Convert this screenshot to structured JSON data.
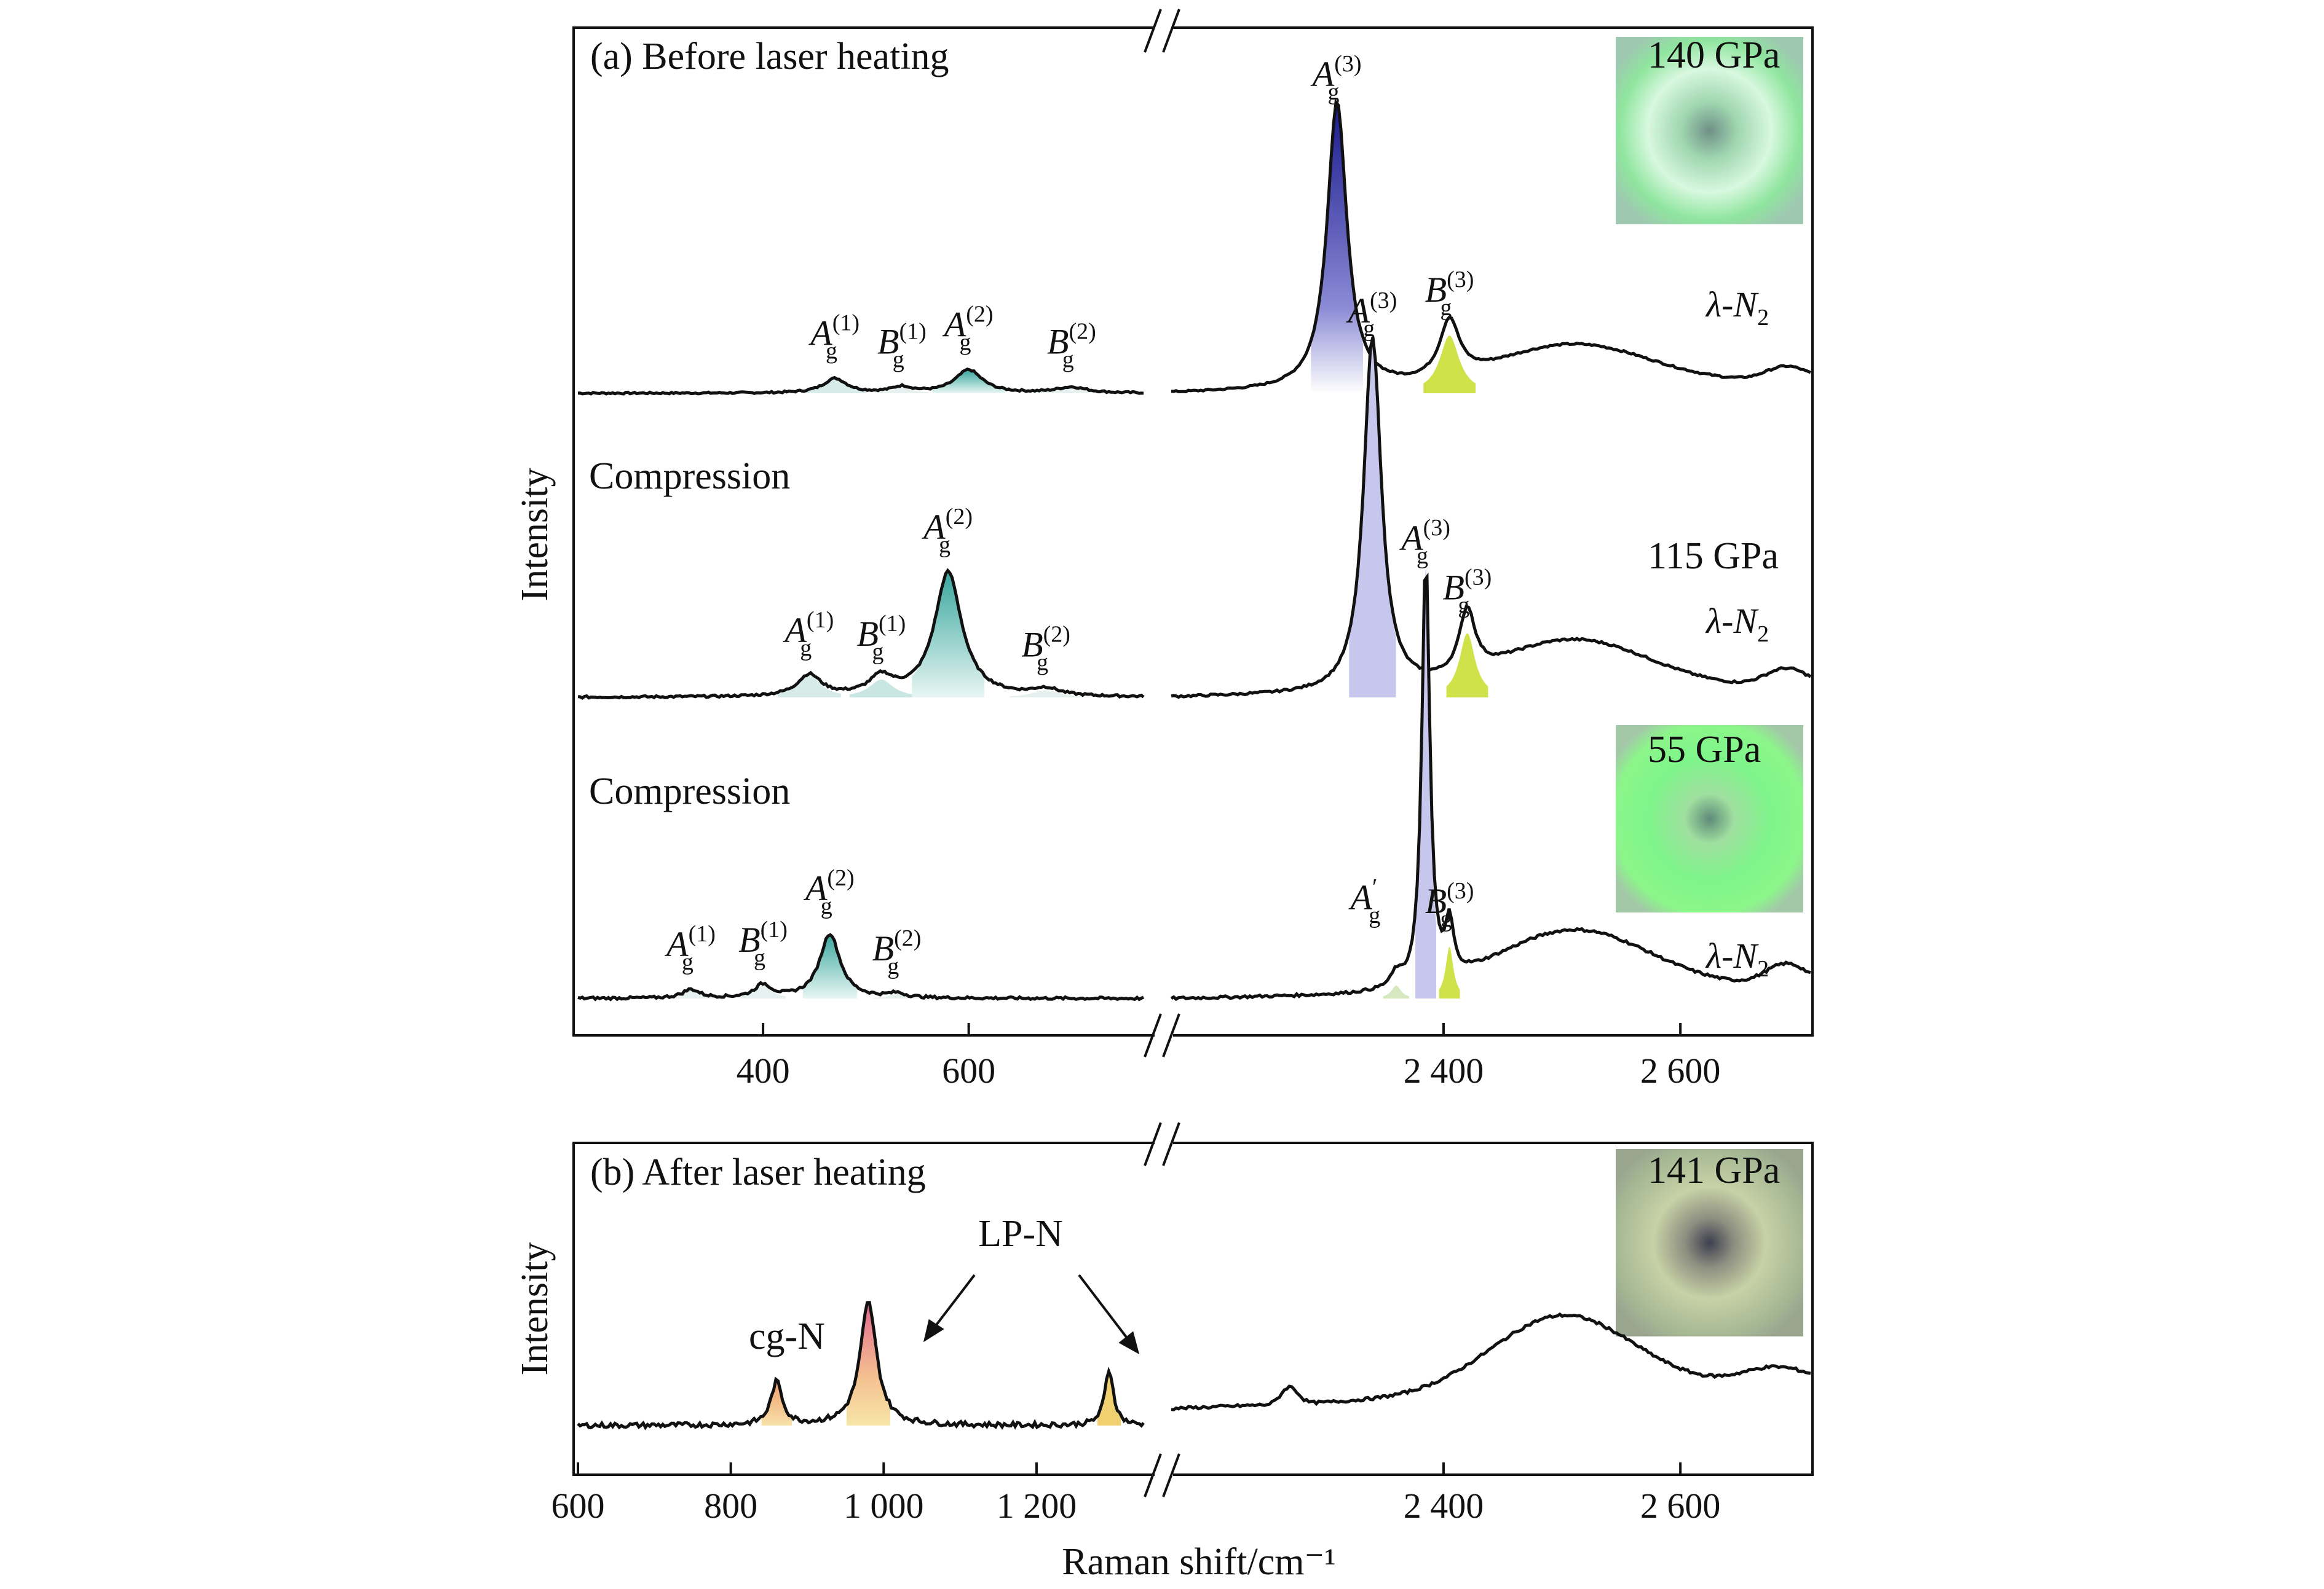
{
  "colors": {
    "line": "#111111",
    "peak_a3": "#2f2f9a",
    "peak_a2": "#6fc4b8",
    "peak_b3": "#cfe24a",
    "peak_small": "#d7ece8",
    "peak_lpn": "#f3b98a",
    "peak_cgn": "#f0c98e",
    "inset_green": "#7fe39a",
    "inset_bright": "#8cf587",
    "inset_after": "#b8c59a"
  },
  "chart_data": [
    {
      "type": "line",
      "panel": "a",
      "title": "(a) Before laser heating",
      "ylabel": "Intensity",
      "x_segments": [
        {
          "range": [
            220,
            770
          ],
          "ticks": [
            400,
            600
          ],
          "tick_labels": [
            "400",
            "600"
          ]
        },
        {
          "range": [
            2170,
            2710
          ],
          "ticks": [
            2400,
            2600
          ],
          "tick_labels": [
            "2 400",
            "2 600"
          ]
        }
      ],
      "axis_break": "//",
      "series": [
        {
          "name": "140 GPa",
          "phase_label": "λ-N",
          "phase_sub": "2",
          "peaks": [
            {
              "label": "A",
              "sup": "(1)",
              "sub": "g",
              "x": 470,
              "height": 0.05
            },
            {
              "label": "B",
              "sup": "(1)",
              "sub": "g",
              "x": 535,
              "height": 0.02
            },
            {
              "label": "A",
              "sup": "(2)",
              "sub": "g",
              "x": 600,
              "height": 0.08
            },
            {
              "label": "B",
              "sup": "(2)",
              "sub": "g",
              "x": 700,
              "height": 0.02
            },
            {
              "label": "A",
              "sup": "(3)",
              "sub": "g",
              "x": 2310,
              "height": 1.0
            },
            {
              "label": "B",
              "sup": "(3)",
              "sub": "g",
              "x": 2405,
              "height": 0.2
            }
          ]
        },
        {
          "name": "115 GPa",
          "phase_label": "λ-N",
          "phase_sub": "2",
          "peaks": [
            {
              "label": "A",
              "sup": "(1)",
              "sub": "g",
              "x": 445,
              "height": 0.06
            },
            {
              "label": "B",
              "sup": "(1)",
              "sub": "g",
              "x": 515,
              "height": 0.05
            },
            {
              "label": "A",
              "sup": "(2)",
              "sub": "g",
              "x": 580,
              "height": 0.35
            },
            {
              "label": "B",
              "sup": "(2)",
              "sub": "g",
              "x": 675,
              "height": 0.02
            },
            {
              "label": "A",
              "sup": "(3)",
              "sub": "g",
              "x": 2340,
              "height": 1.0
            },
            {
              "label": "B",
              "sup": "(3)",
              "sub": "g",
              "x": 2420,
              "height": 0.18
            }
          ],
          "annotation": "Compression"
        },
        {
          "name": "55 GPa",
          "phase_label": "λ-N",
          "phase_sub": "2",
          "peaks": [
            {
              "label": "A",
              "sup": "(1)",
              "sub": "g",
              "x": 330,
              "height": 0.02
            },
            {
              "label": "B",
              "sup": "(1)",
              "sub": "g",
              "x": 400,
              "height": 0.03
            },
            {
              "label": "A",
              "sup": "(2)",
              "sub": "g",
              "x": 465,
              "height": 0.15
            },
            {
              "label": "B",
              "sup": "(2)",
              "sub": "g",
              "x": 530,
              "height": 0.01
            },
            {
              "label": "A",
              "sup": "′",
              "sub": "g",
              "x": 2360,
              "height": 0.03
            },
            {
              "label": "A",
              "sup": "(3)",
              "sub": "g",
              "x": 2385,
              "height": 1.0
            },
            {
              "label": "B",
              "sup": "(3)",
              "sub": "g",
              "x": 2405,
              "height": 0.12
            }
          ],
          "annotation": "Compression"
        }
      ]
    },
    {
      "type": "line",
      "panel": "b",
      "title": "(b) After laser heating",
      "ylabel": "Intensity",
      "xlabel": "Raman shift/cm⁻¹",
      "x_segments": [
        {
          "range": [
            600,
            1340
          ],
          "ticks": [
            600,
            800,
            1000,
            1200
          ],
          "tick_labels": [
            "600",
            "800",
            "1 000",
            "1 200"
          ]
        },
        {
          "range": [
            2170,
            2710
          ],
          "ticks": [
            2400,
            2600
          ],
          "tick_labels": [
            "2 400",
            "2 600"
          ]
        }
      ],
      "axis_break": "//",
      "series": [
        {
          "name": "141 GPa",
          "peaks": [
            {
              "label": "cg-N",
              "x": 860,
              "height": 0.35
            },
            {
              "label": "LP-N",
              "x": 980,
              "height": 1.0
            },
            {
              "label": "LP-N",
              "x": 1295,
              "height": 0.45
            }
          ]
        }
      ],
      "annotations": [
        "cg-N",
        "LP-N"
      ]
    }
  ]
}
